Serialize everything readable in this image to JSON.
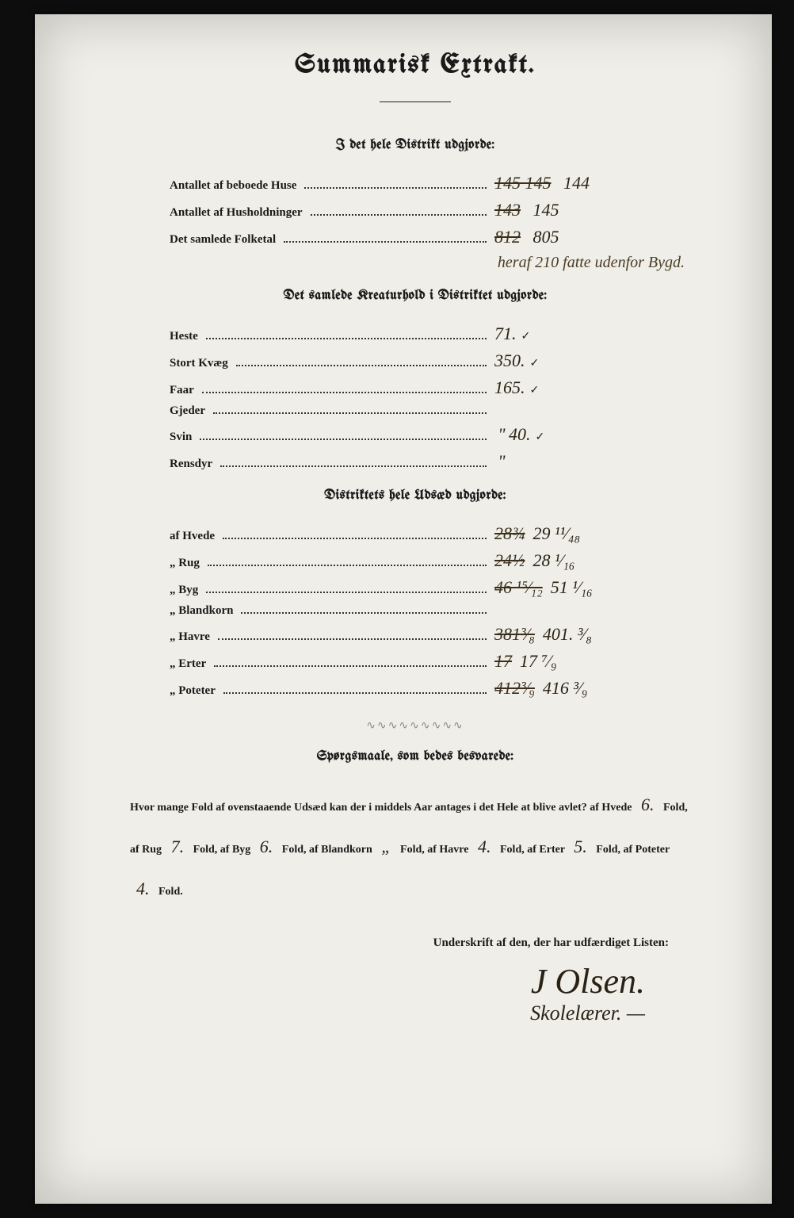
{
  "title": "Summarisk Extrakt.",
  "sections": {
    "district_total": {
      "heading": "I det hele Distrikt udgjorde:",
      "rows": [
        {
          "label": "Antallet af beboede Huse",
          "struck": "145 145",
          "value": "144"
        },
        {
          "label": "Antallet af Husholdninger",
          "struck": "143",
          "value": "145"
        },
        {
          "label": "Det samlede Folketal",
          "struck": "812",
          "value": "805"
        }
      ],
      "annotation": "heraf 210 fatte udenfor Bygd."
    },
    "livestock": {
      "heading": "Det samlede Kreaturhold i Distriktet udgjorde:",
      "rows": [
        {
          "label": "Heste",
          "value": "71.",
          "tick": true
        },
        {
          "label": "Stort Kvæg",
          "value": "350.",
          "tick": true
        },
        {
          "label": "Faar",
          "value": "165.",
          "tick": true
        },
        {
          "label": "Gjeder",
          "value": ""
        },
        {
          "label": "Svin",
          "value": "40.",
          "tick": true,
          "ditto": "\""
        },
        {
          "label": "Rensdyr",
          "value": "",
          "ditto": "\""
        }
      ]
    },
    "seed": {
      "heading": "Distriktets hele Udsæd udgjorde:",
      "rows": [
        {
          "label": "af Hvede",
          "struck": "28¾",
          "value": "29 ¹¹⁄₄₈"
        },
        {
          "label": "„ Rug",
          "struck": "24½",
          "value": "28 ¹⁄₁₆"
        },
        {
          "label": "„ Byg",
          "struck": "46 ¹⁵⁄₁₂",
          "value": "51 ¹⁄₁₆"
        },
        {
          "label": "„ Blandkorn",
          "value": ""
        },
        {
          "label": "„ Havre",
          "struck": "381³⁄₈",
          "value": "401. ³⁄₈"
        },
        {
          "label": "„ Erter",
          "struck": "17",
          "value": "17 ⁷⁄₉"
        },
        {
          "label": "„ Poteter",
          "struck": "412³⁄₉",
          "value": "416 ³⁄₉"
        }
      ]
    }
  },
  "questions": {
    "heading": "Spørgsmaale, som bedes besvarede:",
    "text_parts": {
      "lead": "Hvor mange Fold af ovenstaaende Udsæd kan der i middels Aar antages i det Hele at blive avlet?  af Hvede",
      "hvede": "6.",
      "rug_lbl": "Fold, af Rug",
      "rug": "7.",
      "byg_lbl": "Fold, af Byg",
      "byg": "6.",
      "bland_lbl": "Fold, af Blandkorn",
      "bland": "„",
      "havre_lbl": "Fold, af Havre",
      "havre": "4.",
      "erter_lbl": "Fold, af Erter",
      "erter": "5.",
      "poteter_lbl": "Fold, af Poteter",
      "poteter": "4.",
      "tail": "Fold."
    }
  },
  "signature": {
    "heading": "Underskrift af den, der har udfærdiget Listen:",
    "name": "J Olsen.",
    "role": "Skolelærer. —"
  }
}
